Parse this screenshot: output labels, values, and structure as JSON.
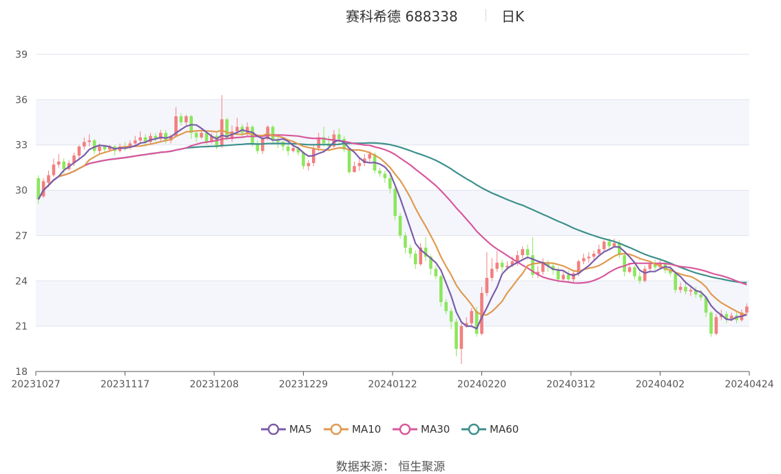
{
  "title": {
    "name": "赛科希德 688338",
    "period": "日K"
  },
  "source": "数据来源： 恒生聚源",
  "colors": {
    "up": "#f27f7f",
    "down": "#8ce65d",
    "MA5": "#7b5ba9",
    "MA10": "#e0994f",
    "MA30": "#d8579c",
    "MA60": "#3b8f8b",
    "band": "#f4f6fb",
    "grid": "#dfe3ee"
  },
  "chart_data": {
    "type": "candlestick",
    "ylim": [
      18,
      39
    ],
    "yticks": [
      "18",
      "21",
      "24",
      "27",
      "30",
      "33",
      "36",
      "39"
    ],
    "xticks": [
      "20231027",
      "20231117",
      "20231208",
      "20231229",
      "20240122",
      "20240220",
      "20240312",
      "20240402",
      "20240424"
    ],
    "legend": [
      "MA5",
      "MA10",
      "MA30",
      "MA60"
    ],
    "ohlc": [
      [
        30.8,
        29.4,
        31.0,
        29.1
      ],
      [
        29.6,
        30.6,
        30.8,
        29.5
      ],
      [
        30.5,
        31.0,
        31.3,
        30.2
      ],
      [
        31.0,
        31.7,
        32.1,
        30.9
      ],
      [
        31.7,
        31.9,
        32.4,
        31.5
      ],
      [
        31.9,
        31.4,
        32.1,
        31.1
      ],
      [
        31.4,
        31.8,
        32.0,
        31.3
      ],
      [
        31.8,
        32.3,
        32.5,
        31.6
      ],
      [
        32.3,
        32.9,
        33.0,
        32.0
      ],
      [
        32.9,
        33.2,
        33.5,
        32.7
      ],
      [
        33.2,
        33.3,
        33.7,
        32.9
      ],
      [
        33.3,
        32.6,
        33.4,
        32.4
      ],
      [
        32.6,
        32.9,
        33.1,
        32.4
      ],
      [
        32.9,
        32.7,
        33.0,
        32.5
      ],
      [
        32.7,
        32.9,
        33.0,
        32.6
      ],
      [
        32.9,
        32.6,
        33.0,
        32.3
      ],
      [
        32.6,
        32.9,
        33.1,
        32.5
      ],
      [
        32.9,
        32.8,
        33.2,
        32.6
      ],
      [
        32.8,
        33.1,
        33.3,
        32.7
      ],
      [
        33.1,
        33.3,
        33.6,
        33.0
      ],
      [
        33.3,
        33.5,
        33.9,
        33.1
      ],
      [
        33.5,
        33.2,
        33.7,
        32.9
      ],
      [
        33.2,
        33.6,
        33.8,
        33.0
      ],
      [
        33.6,
        33.4,
        33.8,
        33.2
      ],
      [
        33.4,
        33.8,
        34.0,
        33.2
      ],
      [
        33.8,
        33.3,
        34.0,
        33.1
      ],
      [
        33.3,
        33.6,
        33.7,
        33.1
      ],
      [
        33.6,
        34.9,
        35.5,
        33.5
      ],
      [
        34.9,
        34.5,
        35.1,
        34.3
      ],
      [
        34.5,
        34.9,
        35.0,
        34.2
      ],
      [
        34.9,
        33.8,
        35.0,
        33.4
      ],
      [
        33.8,
        33.5,
        34.0,
        33.2
      ],
      [
        33.5,
        33.8,
        34.0,
        33.4
      ],
      [
        33.8,
        33.2,
        33.9,
        33.0
      ],
      [
        33.2,
        33.6,
        33.8,
        33.1
      ],
      [
        33.6,
        32.9,
        33.8,
        32.7
      ],
      [
        32.9,
        34.7,
        36.3,
        32.8
      ],
      [
        34.7,
        33.4,
        34.8,
        33.3
      ],
      [
        33.4,
        33.9,
        34.3,
        33.2
      ],
      [
        33.9,
        34.2,
        34.8,
        33.7
      ],
      [
        34.2,
        33.8,
        34.4,
        33.5
      ],
      [
        33.8,
        34.2,
        34.5,
        33.6
      ],
      [
        34.2,
        33.1,
        34.3,
        32.9
      ],
      [
        33.1,
        32.6,
        33.3,
        32.4
      ],
      [
        32.6,
        33.4,
        33.6,
        32.4
      ],
      [
        33.4,
        34.2,
        34.3,
        33.3
      ],
      [
        34.2,
        33.3,
        34.3,
        33.1
      ],
      [
        33.3,
        33.2,
        33.6,
        32.8
      ],
      [
        33.2,
        32.9,
        33.3,
        32.6
      ],
      [
        32.9,
        32.6,
        33.1,
        32.3
      ],
      [
        32.6,
        32.8,
        33.1,
        32.5
      ],
      [
        32.8,
        32.5,
        32.9,
        32.3
      ],
      [
        32.5,
        31.6,
        32.6,
        31.4
      ],
      [
        31.6,
        31.8,
        32.0,
        31.3
      ],
      [
        31.8,
        32.8,
        33.0,
        31.6
      ],
      [
        32.8,
        33.5,
        33.8,
        32.6
      ],
      [
        33.5,
        33.1,
        34.2,
        32.9
      ],
      [
        33.1,
        32.9,
        33.6,
        32.7
      ],
      [
        32.9,
        33.7,
        34.0,
        32.8
      ],
      [
        33.7,
        33.4,
        34.1,
        33.0
      ],
      [
        33.4,
        32.7,
        33.6,
        32.5
      ],
      [
        32.7,
        31.2,
        32.8,
        31.1
      ],
      [
        31.2,
        31.6,
        31.9,
        31.2
      ],
      [
        31.6,
        31.8,
        32.1,
        31.3
      ],
      [
        31.8,
        32.1,
        32.4,
        31.6
      ],
      [
        32.1,
        32.4,
        32.6,
        31.9
      ],
      [
        32.4,
        31.3,
        32.5,
        31.1
      ],
      [
        31.3,
        31.1,
        31.5,
        30.9
      ],
      [
        31.1,
        30.8,
        31.3,
        30.5
      ],
      [
        30.8,
        30.1,
        31.0,
        29.8
      ],
      [
        30.1,
        28.3,
        30.3,
        28.0
      ],
      [
        28.3,
        27.0,
        28.5,
        26.8
      ],
      [
        27.0,
        26.2,
        27.2,
        25.8
      ],
      [
        26.2,
        25.8,
        26.4,
        25.5
      ],
      [
        25.8,
        25.1,
        26.0,
        24.8
      ],
      [
        25.1,
        26.2,
        26.5,
        25.0
      ],
      [
        26.2,
        25.6,
        26.9,
        25.3
      ],
      [
        25.6,
        24.8,
        25.7,
        24.4
      ],
      [
        24.8,
        24.3,
        25.0,
        24.1
      ],
      [
        24.3,
        22.6,
        24.4,
        22.3
      ],
      [
        22.6,
        22.0,
        22.8,
        21.8
      ],
      [
        22.0,
        21.3,
        22.2,
        20.8
      ],
      [
        21.3,
        19.5,
        21.5,
        19.0
      ],
      [
        19.5,
        21.0,
        21.2,
        18.5
      ],
      [
        21.0,
        21.2,
        21.6,
        20.9
      ],
      [
        21.2,
        22.0,
        22.2,
        21.0
      ],
      [
        22.0,
        20.5,
        22.3,
        20.3
      ],
      [
        20.5,
        23.2,
        23.6,
        20.4
      ],
      [
        23.2,
        24.2,
        25.9,
        23.0
      ],
      [
        24.2,
        24.8,
        25.5,
        24.0
      ],
      [
        24.8,
        25.2,
        26.0,
        24.6
      ],
      [
        25.2,
        24.9,
        25.4,
        24.6
      ],
      [
        24.9,
        25.0,
        25.3,
        24.7
      ],
      [
        25.0,
        25.3,
        25.6,
        24.9
      ],
      [
        25.3,
        25.7,
        26.0,
        25.0
      ],
      [
        25.7,
        26.1,
        26.3,
        25.5
      ],
      [
        26.1,
        25.7,
        26.4,
        25.4
      ],
      [
        25.7,
        24.4,
        26.9,
        24.2
      ],
      [
        24.4,
        24.6,
        25.0,
        24.2
      ],
      [
        24.6,
        25.2,
        25.5,
        24.4
      ],
      [
        25.2,
        25.0,
        25.4,
        24.6
      ],
      [
        25.0,
        24.7,
        25.2,
        24.4
      ],
      [
        24.7,
        24.1,
        24.9,
        23.9
      ],
      [
        24.1,
        24.4,
        24.6,
        24.0
      ],
      [
        24.4,
        24.1,
        24.7,
        23.9
      ],
      [
        24.1,
        24.5,
        24.7,
        23.9
      ],
      [
        24.5,
        25.3,
        25.4,
        24.3
      ],
      [
        25.3,
        25.5,
        25.8,
        25.1
      ],
      [
        25.5,
        25.6,
        25.9,
        25.2
      ],
      [
        25.6,
        25.8,
        26.0,
        25.4
      ],
      [
        25.8,
        26.1,
        26.4,
        25.6
      ],
      [
        26.1,
        26.6,
        26.7,
        25.9
      ],
      [
        26.6,
        26.3,
        26.8,
        26.1
      ],
      [
        26.3,
        26.5,
        26.8,
        26.2
      ],
      [
        26.5,
        25.7,
        26.7,
        25.5
      ],
      [
        25.7,
        24.6,
        25.8,
        24.3
      ],
      [
        24.6,
        24.9,
        25.2,
        24.5
      ],
      [
        24.9,
        24.3,
        25.0,
        24.1
      ],
      [
        24.3,
        24.0,
        24.6,
        23.8
      ],
      [
        24.0,
        24.8,
        25.0,
        23.9
      ],
      [
        24.8,
        25.1,
        25.3,
        24.6
      ],
      [
        25.1,
        24.9,
        25.4,
        24.7
      ],
      [
        24.9,
        25.2,
        25.4,
        24.8
      ],
      [
        25.2,
        24.7,
        25.3,
        24.5
      ],
      [
        24.7,
        24.5,
        25.0,
        24.3
      ],
      [
        24.5,
        23.4,
        24.6,
        23.2
      ],
      [
        23.4,
        23.6,
        23.9,
        23.2
      ],
      [
        23.6,
        23.3,
        23.9,
        23.1
      ],
      [
        23.3,
        23.4,
        23.7,
        23.0
      ],
      [
        23.4,
        23.1,
        23.6,
        22.9
      ],
      [
        23.1,
        22.9,
        23.4,
        22.7
      ],
      [
        22.9,
        21.9,
        23.0,
        21.6
      ],
      [
        21.9,
        20.5,
        22.0,
        20.3
      ],
      [
        20.5,
        21.6,
        21.8,
        20.4
      ],
      [
        21.6,
        21.8,
        22.1,
        21.4
      ],
      [
        21.8,
        21.5,
        22.0,
        21.2
      ],
      [
        21.5,
        21.7,
        21.9,
        21.3
      ],
      [
        21.7,
        21.4,
        21.9,
        21.2
      ],
      [
        21.4,
        21.9,
        22.1,
        21.3
      ],
      [
        21.9,
        22.3,
        22.5,
        21.8
      ]
    ]
  }
}
